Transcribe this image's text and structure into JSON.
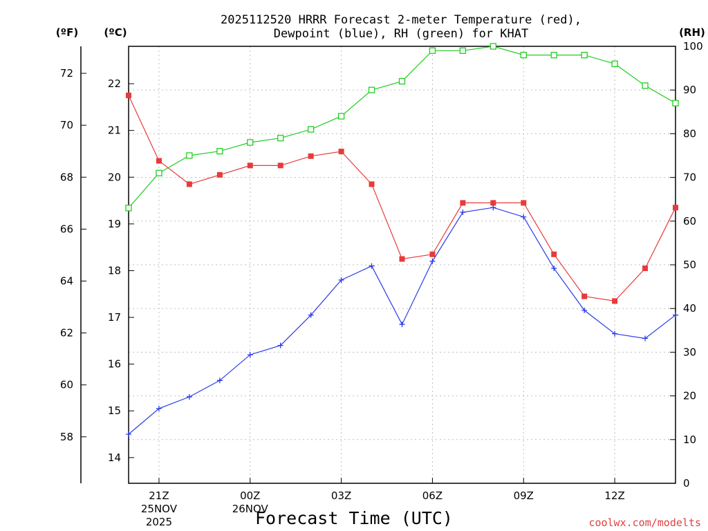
{
  "title_line1": "2025112520 HRRR Forecast 2-meter Temperature (red),",
  "title_line2": "Dewpoint (blue), RH (green) for KHAT",
  "unit_f": "(ºF)",
  "unit_c": "(ºC)",
  "unit_rh": "(RH)",
  "xlabel": "Forecast Time (UTC)",
  "credit": "coolwx.com/modelts",
  "colors": {
    "temperature": "#e83a3a",
    "dewpoint": "#2a3ae8",
    "rh": "#22cc22"
  },
  "chart_data": {
    "type": "line",
    "x": [
      0,
      1,
      2,
      3,
      4,
      5,
      6,
      7,
      8,
      9,
      10,
      11,
      12,
      13,
      14,
      15,
      16,
      17,
      18
    ],
    "x_ticks": [
      {
        "x": 1,
        "line1": "21Z",
        "line2": "25NOV",
        "line3": "2025"
      },
      {
        "x": 4,
        "line1": "00Z",
        "line2": "26NOV",
        "line3": ""
      },
      {
        "x": 7,
        "line1": "03Z",
        "line2": "",
        "line3": ""
      },
      {
        "x": 10,
        "line1": "06Z",
        "line2": "",
        "line3": ""
      },
      {
        "x": 13,
        "line1": "09Z",
        "line2": "",
        "line3": ""
      },
      {
        "x": 16,
        "line1": "12Z",
        "line2": "",
        "line3": ""
      }
    ],
    "xlim": [
      0,
      18
    ],
    "y_left_c": {
      "label": "(ºC)",
      "ticks": [
        "14",
        "15",
        "16",
        "17",
        "18",
        "19",
        "20",
        "21",
        "22"
      ],
      "lim": [
        13.45,
        22.8
      ]
    },
    "y_left_f": {
      "label": "(ºF)",
      "ticks": [
        "58",
        "60",
        "62",
        "64",
        "66",
        "68",
        "70",
        "72"
      ]
    },
    "y_right_rh": {
      "label": "(RH)",
      "ticks": [
        "0",
        "10",
        "20",
        "30",
        "40",
        "50",
        "60",
        "70",
        "80",
        "90",
        "100"
      ],
      "lim": [
        0,
        100
      ]
    },
    "series": [
      {
        "name": "Temperature",
        "axis": "celsius",
        "marker": "filled-square",
        "values": [
          21.75,
          20.35,
          19.85,
          20.05,
          20.25,
          20.25,
          20.45,
          20.55,
          19.85,
          18.25,
          18.35,
          19.45,
          19.45,
          19.45,
          18.35,
          17.45,
          17.35,
          18.05,
          19.35
        ]
      },
      {
        "name": "Dewpoint",
        "axis": "celsius",
        "marker": "plus",
        "values": [
          14.5,
          15.05,
          15.3,
          15.65,
          16.2,
          16.4,
          17.05,
          17.8,
          18.1,
          16.85,
          18.2,
          19.25,
          19.35,
          19.15,
          18.05,
          17.15,
          16.65,
          16.55,
          17.05
        ]
      },
      {
        "name": "RH",
        "axis": "rh",
        "marker": "open-square",
        "values": [
          63,
          71,
          75,
          76,
          78,
          79,
          81,
          84,
          90,
          92,
          99,
          99,
          100,
          98,
          98,
          98,
          96,
          91,
          87
        ]
      }
    ]
  }
}
